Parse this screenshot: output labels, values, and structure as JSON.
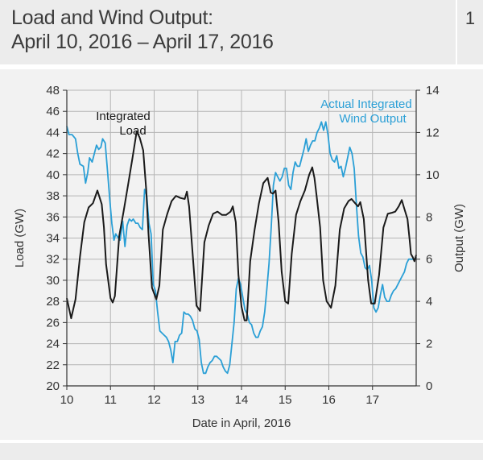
{
  "header": {
    "title_line1": "Load and Wind Output:",
    "title_line2": "April 10, 2016 – April 17, 2016",
    "figure_number": "1"
  },
  "chart_data": {
    "type": "line",
    "xlabel": "Date in April, 2016",
    "ylabel_left": "Load (GW)",
    "ylabel_right": "Output (GW)",
    "xlim": [
      10,
      18
    ],
    "ylim_left": [
      20,
      48
    ],
    "ylim_right": [
      0,
      14
    ],
    "x_ticks": [
      "10",
      "11",
      "12",
      "13",
      "14",
      "15",
      "16",
      "17"
    ],
    "y_left_ticks": [
      "48",
      "46",
      "44",
      "42",
      "40",
      "38",
      "36",
      "34",
      "32",
      "30",
      "28",
      "26",
      "24",
      "22",
      "20"
    ],
    "y_right_ticks": [
      "14",
      "12",
      "10",
      "8",
      "6",
      "4",
      "2",
      "0"
    ],
    "grid": true,
    "colors": {
      "load": "#1a1a1a",
      "wind": "#2a9fd6",
      "grid": "#b5b5b5",
      "axis": "#333333"
    },
    "annotations": [
      {
        "series": "load",
        "lines": [
          "Integrated",
          "Load"
        ]
      },
      {
        "series": "wind",
        "lines": [
          "Actual Integrated",
          "Wind Output"
        ]
      }
    ],
    "series": [
      {
        "key": "load",
        "axis": "left",
        "x": [
          10.0,
          10.1,
          10.2,
          10.3,
          10.4,
          10.5,
          10.6,
          10.7,
          10.8,
          10.85,
          10.9,
          11.0,
          11.05,
          11.1,
          11.2,
          11.3,
          11.4,
          11.5,
          11.6,
          11.67,
          11.75,
          11.82,
          11.87,
          11.95,
          12.05,
          12.12,
          12.2,
          12.3,
          12.4,
          12.5,
          12.6,
          12.7,
          12.75,
          12.8,
          12.9,
          12.97,
          13.05,
          13.15,
          13.25,
          13.35,
          13.45,
          13.55,
          13.65,
          13.75,
          13.8,
          13.87,
          13.93,
          14.0,
          14.07,
          14.12,
          14.2,
          14.3,
          14.4,
          14.5,
          14.6,
          14.67,
          14.72,
          14.78,
          14.85,
          14.92,
          15.0,
          15.07,
          15.15,
          15.25,
          15.35,
          15.45,
          15.55,
          15.62,
          15.67,
          15.72,
          15.8,
          15.87,
          15.95,
          16.05,
          16.15,
          16.25,
          16.35,
          16.45,
          16.52,
          16.6,
          16.67,
          16.72,
          16.8,
          16.9,
          16.97,
          17.05,
          17.15,
          17.25,
          17.35,
          17.45,
          17.52,
          17.6,
          17.67,
          17.72,
          17.8,
          17.85,
          17.88,
          17.92,
          17.96,
          18.0
        ],
        "values": [
          28.3,
          26.4,
          28.2,
          32.2,
          35.5,
          36.9,
          37.3,
          38.5,
          37.2,
          35.0,
          31.5,
          28.3,
          27.9,
          28.5,
          34.2,
          36.5,
          39.0,
          41.5,
          44.1,
          43.5,
          42.3,
          38.5,
          34.5,
          29.3,
          28.2,
          29.5,
          34.8,
          36.3,
          37.5,
          38.0,
          37.8,
          37.7,
          38.4,
          37.0,
          31.5,
          27.6,
          27.1,
          33.6,
          35.2,
          36.3,
          36.5,
          36.2,
          36.2,
          36.5,
          37.0,
          35.5,
          30.5,
          27.5,
          26.2,
          26.2,
          31.8,
          34.8,
          37.3,
          39.2,
          39.7,
          38.3,
          38.2,
          38.5,
          35.5,
          30.8,
          28.0,
          27.8,
          32.5,
          36.2,
          37.5,
          38.5,
          40.0,
          40.7,
          39.7,
          38.0,
          35.0,
          30.0,
          28.0,
          27.4,
          29.5,
          34.8,
          36.8,
          37.5,
          37.7,
          37.3,
          37.0,
          37.4,
          35.8,
          30.0,
          27.8,
          27.8,
          30.5,
          35.0,
          36.3,
          36.4,
          36.5,
          37.0,
          37.6,
          36.9,
          35.8,
          33.8,
          32.5,
          32.2,
          31.8,
          32.4
        ]
      },
      {
        "key": "wind",
        "axis": "right",
        "x": [
          10.0,
          10.05,
          10.12,
          10.2,
          10.25,
          10.3,
          10.38,
          10.43,
          10.48,
          10.52,
          10.58,
          10.63,
          10.68,
          10.73,
          10.78,
          10.82,
          10.88,
          10.93,
          10.98,
          11.03,
          11.08,
          11.12,
          11.18,
          11.22,
          11.28,
          11.33,
          11.38,
          11.43,
          11.48,
          11.52,
          11.58,
          11.63,
          11.68,
          11.73,
          11.78,
          11.83,
          11.88,
          11.93,
          11.98,
          12.03,
          12.08,
          12.13,
          12.18,
          12.23,
          12.28,
          12.33,
          12.38,
          12.43,
          12.48,
          12.53,
          12.58,
          12.63,
          12.68,
          12.73,
          12.78,
          12.83,
          12.88,
          12.93,
          12.98,
          13.03,
          13.08,
          13.13,
          13.18,
          13.23,
          13.28,
          13.33,
          13.38,
          13.43,
          13.48,
          13.53,
          13.58,
          13.63,
          13.68,
          13.73,
          13.78,
          13.83,
          13.88,
          13.93,
          13.98,
          14.03,
          14.08,
          14.13,
          14.18,
          14.23,
          14.28,
          14.33,
          14.38,
          14.43,
          14.48,
          14.53,
          14.58,
          14.63,
          14.68,
          14.73,
          14.78,
          14.83,
          14.88,
          14.93,
          14.98,
          15.03,
          15.08,
          15.13,
          15.18,
          15.23,
          15.28,
          15.33,
          15.38,
          15.43,
          15.48,
          15.53,
          15.58,
          15.63,
          15.68,
          15.73,
          15.78,
          15.83,
          15.88,
          15.93,
          15.98,
          16.03,
          16.08,
          16.13,
          16.18,
          16.23,
          16.28,
          16.33,
          16.38,
          16.43,
          16.48,
          16.53,
          16.58,
          16.63,
          16.68,
          16.73,
          16.78,
          16.83,
          16.88,
          16.93,
          16.98,
          17.03,
          17.08,
          17.13,
          17.18,
          17.23,
          17.28,
          17.33,
          17.38,
          17.43,
          17.48,
          17.53,
          17.58,
          17.63,
          17.68,
          17.73,
          17.78,
          17.83,
          17.88,
          17.93,
          17.98,
          18.0
        ],
        "values": [
          12.3,
          11.9,
          11.9,
          11.7,
          11.0,
          10.5,
          10.4,
          9.6,
          10.1,
          10.8,
          10.6,
          11.0,
          11.4,
          11.2,
          11.3,
          11.7,
          11.5,
          10.2,
          8.9,
          7.7,
          6.9,
          7.2,
          7.0,
          6.9,
          7.8,
          6.6,
          7.6,
          7.9,
          7.8,
          7.9,
          7.7,
          7.7,
          7.5,
          7.4,
          9.3,
          9.0,
          7.7,
          7.2,
          4.8,
          4.5,
          3.5,
          2.6,
          2.5,
          2.4,
          2.3,
          2.1,
          1.7,
          1.1,
          2.1,
          2.1,
          2.4,
          2.5,
          3.5,
          3.4,
          3.4,
          3.3,
          3.1,
          2.7,
          2.6,
          2.2,
          1.1,
          0.6,
          0.6,
          0.9,
          1.1,
          1.2,
          1.4,
          1.4,
          1.3,
          1.2,
          0.9,
          0.7,
          0.6,
          1.0,
          2.0,
          3.0,
          4.6,
          5.1,
          4.8,
          4.2,
          3.6,
          3.4,
          3.0,
          2.9,
          2.5,
          2.3,
          2.3,
          2.6,
          2.8,
          3.5,
          4.6,
          5.8,
          7.5,
          9.5,
          10.1,
          9.9,
          9.7,
          9.9,
          10.3,
          10.3,
          9.5,
          9.3,
          10.1,
          10.6,
          10.4,
          10.4,
          10.8,
          11.2,
          11.7,
          11.1,
          11.4,
          11.6,
          11.6,
          12.0,
          12.2,
          12.5,
          12.1,
          12.5,
          11.9,
          11.0,
          10.7,
          10.6,
          10.9,
          10.3,
          10.4,
          9.9,
          10.3,
          10.8,
          11.3,
          11.0,
          10.3,
          8.6,
          7.1,
          6.3,
          6.1,
          5.6,
          5.5,
          5.7,
          5.0,
          3.7,
          3.5,
          3.7,
          4.3,
          4.8,
          4.2,
          4.0,
          4.0,
          4.3,
          4.5,
          4.6,
          4.8,
          5.0,
          5.2,
          5.4,
          5.8,
          6.0,
          6.0,
          6.0,
          6.0,
          6.1
        ]
      }
    ]
  }
}
